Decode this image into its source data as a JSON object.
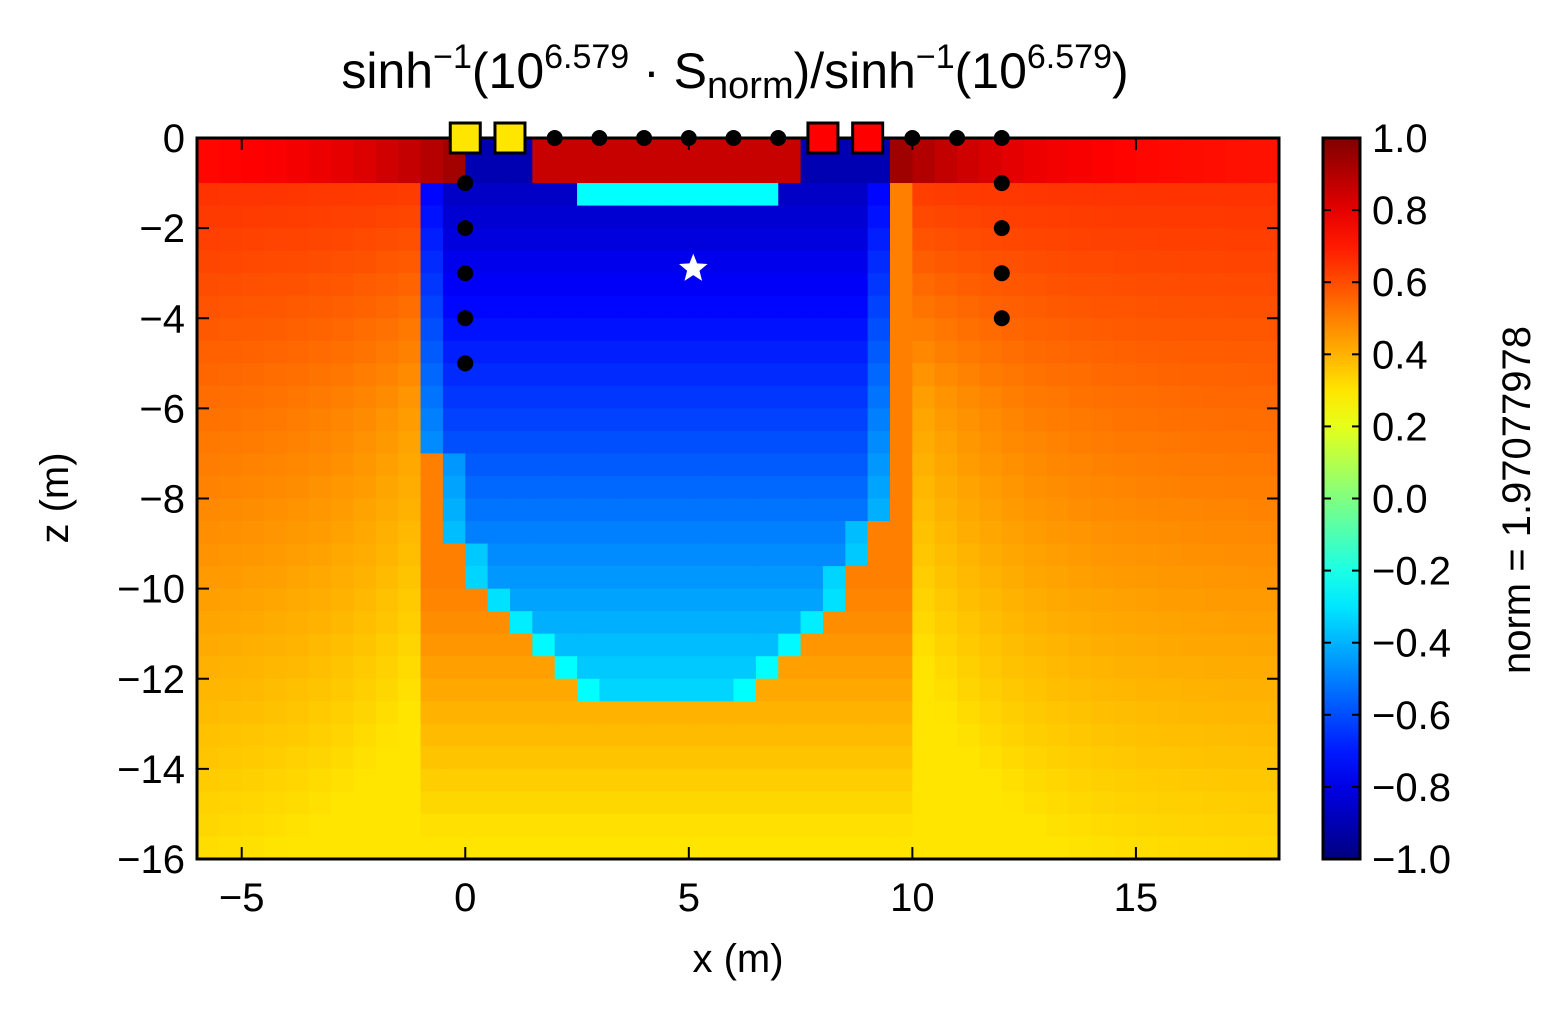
{
  "chart_data": {
    "type": "heatmap",
    "title": {
      "part1": "sinh",
      "sup1": "−1",
      "part2": "(10",
      "sup2": "6.579",
      "part3": " · S",
      "sub3": "norm",
      "part4": ")/sinh",
      "sup4": "−1",
      "part5": "(10",
      "sup5": "6.579",
      "part6": ")"
    },
    "xlabel": "x (m)",
    "ylabel": "z (m)",
    "xlim": [
      -6,
      18.2
    ],
    "ylim": [
      -16,
      0
    ],
    "x_ticks": [
      -5,
      0,
      5,
      10,
      15
    ],
    "x_tick_labels": [
      "−5",
      "0",
      "5",
      "10",
      "15"
    ],
    "y_ticks": [
      0,
      -2,
      -4,
      -6,
      -8,
      -10,
      -12,
      -14,
      -16
    ],
    "y_tick_labels": [
      "0",
      "−2",
      "−4",
      "−6",
      "−8",
      "−10",
      "−12",
      "−14",
      "−16"
    ],
    "colormap": "jet",
    "color_range": [
      -1,
      1
    ],
    "colorbar": {
      "ticks": [
        1.0,
        0.8,
        0.6,
        0.4,
        0.2,
        0.0,
        -0.2,
        -0.4,
        -0.6,
        -0.8,
        -1.0
      ],
      "tick_labels": [
        "1.0",
        "0.8",
        "0.6",
        "0.4",
        "0.2",
        "0.0",
        "−0.2",
        "−0.4",
        "−0.6",
        "−0.8",
        "−1.0"
      ],
      "label": "norm = 1.97077978"
    },
    "field_description_values": {
      "background_value_at_surface_far": 0.68,
      "background_value_at_depth_center": 0.33,
      "negative_zone_min": -0.9,
      "negative_zone_x_range": [
        -0.7,
        9.6
      ],
      "negative_zone_bottom_z": -12.8,
      "surface_high_value": 0.9
    },
    "electrodes_yellow_square": [
      [
        0,
        0
      ],
      [
        1,
        0
      ]
    ],
    "electrodes_red_square": [
      [
        8,
        0
      ],
      [
        9,
        0
      ]
    ],
    "electrodes_black_dot": [
      [
        2,
        0
      ],
      [
        3,
        0
      ],
      [
        4,
        0
      ],
      [
        5,
        0
      ],
      [
        6,
        0
      ],
      [
        7,
        0
      ],
      [
        10,
        0
      ],
      [
        11,
        0
      ],
      [
        12,
        0
      ],
      [
        0,
        -1
      ],
      [
        0,
        -2
      ],
      [
        0,
        -3
      ],
      [
        0,
        -4
      ],
      [
        0,
        -5
      ],
      [
        12,
        -1
      ],
      [
        12,
        -2
      ],
      [
        12,
        -3
      ],
      [
        12,
        -4
      ]
    ],
    "star_marker": [
      5.1,
      -2.9
    ],
    "colors": {
      "square_yellow": "#ffe600",
      "square_red": "#ff0000",
      "dot": "#000000",
      "star": "#ffffff"
    }
  }
}
